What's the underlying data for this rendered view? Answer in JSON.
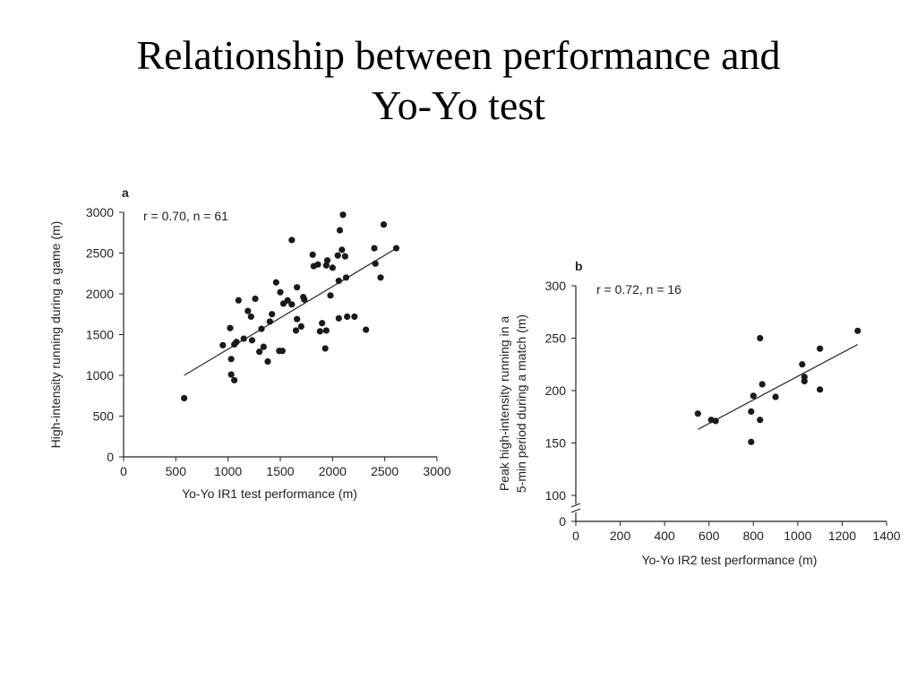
{
  "slide": {
    "title_line1": "Relationship between performance and",
    "title_line2": "Yo-Yo test"
  },
  "chart_data": [
    {
      "type": "scatter",
      "panel": "a",
      "annotation": "r = 0.70, n = 61",
      "xlabel": "Yo-Yo IR1 test performance (m)",
      "ylabel": "High-intensity running during a game (m)",
      "xlim": [
        0,
        3000
      ],
      "ylim": [
        0,
        3000
      ],
      "xticks": [
        0,
        500,
        1000,
        1500,
        2000,
        2500,
        3000
      ],
      "yticks": [
        0,
        500,
        1000,
        1500,
        2000,
        2500,
        3000
      ],
      "trendline": [
        [
          580,
          1000
        ],
        [
          2600,
          2550
        ]
      ],
      "points": [
        [
          580,
          720
        ],
        [
          950,
          1370
        ],
        [
          1020,
          1580
        ],
        [
          1030,
          1200
        ],
        [
          1030,
          1010
        ],
        [
          1060,
          940
        ],
        [
          1060,
          1380
        ],
        [
          1080,
          1410
        ],
        [
          1100,
          1920
        ],
        [
          1150,
          1450
        ],
        [
          1190,
          1790
        ],
        [
          1220,
          1720
        ],
        [
          1230,
          1430
        ],
        [
          1260,
          1940
        ],
        [
          1300,
          1290
        ],
        [
          1320,
          1570
        ],
        [
          1340,
          1350
        ],
        [
          1380,
          1170
        ],
        [
          1400,
          1660
        ],
        [
          1420,
          1750
        ],
        [
          1460,
          2140
        ],
        [
          1490,
          1300
        ],
        [
          1500,
          2020
        ],
        [
          1520,
          1300
        ],
        [
          1530,
          1880
        ],
        [
          1570,
          1920
        ],
        [
          1610,
          2660
        ],
        [
          1610,
          1870
        ],
        [
          1650,
          1550
        ],
        [
          1660,
          2080
        ],
        [
          1660,
          1690
        ],
        [
          1700,
          1600
        ],
        [
          1720,
          1960
        ],
        [
          1730,
          1930
        ],
        [
          1810,
          2480
        ],
        [
          1820,
          2340
        ],
        [
          1860,
          2360
        ],
        [
          1880,
          1540
        ],
        [
          1900,
          1640
        ],
        [
          1930,
          1330
        ],
        [
          1940,
          1550
        ],
        [
          1940,
          2350
        ],
        [
          1950,
          2410
        ],
        [
          1980,
          1980
        ],
        [
          2000,
          2320
        ],
        [
          2050,
          2470
        ],
        [
          2060,
          2160
        ],
        [
          2060,
          1700
        ],
        [
          2070,
          2780
        ],
        [
          2090,
          2540
        ],
        [
          2100,
          2970
        ],
        [
          2120,
          2460
        ],
        [
          2130,
          2200
        ],
        [
          2140,
          1720
        ],
        [
          2210,
          1720
        ],
        [
          2320,
          1560
        ],
        [
          2400,
          2560
        ],
        [
          2410,
          2370
        ],
        [
          2460,
          2200
        ],
        [
          2490,
          2850
        ],
        [
          2610,
          2560
        ]
      ]
    },
    {
      "type": "scatter",
      "panel": "b",
      "annotation": "r = 0.72, n = 16",
      "xlabel": "Yo-Yo IR2 test performance (m)",
      "ylabel_line1": "Peak high-intensity running in a",
      "ylabel_line2": "5-min period during a match (m)",
      "xlim": [
        0,
        1400
      ],
      "ylim": [
        100,
        300
      ],
      "xticks": [
        0,
        200,
        400,
        600,
        800,
        1000,
        1200,
        1400
      ],
      "yticks": [
        100,
        150,
        200,
        250,
        300
      ],
      "y_zero_label": "0",
      "y_axis_break": true,
      "trendline": [
        [
          550,
          163
        ],
        [
          1270,
          244
        ]
      ],
      "points": [
        [
          550,
          178
        ],
        [
          610,
          172
        ],
        [
          630,
          171
        ],
        [
          790,
          151
        ],
        [
          790,
          180
        ],
        [
          800,
          195
        ],
        [
          830,
          250
        ],
        [
          830,
          172
        ],
        [
          840,
          206
        ],
        [
          900,
          194
        ],
        [
          1020,
          225
        ],
        [
          1030,
          213
        ],
        [
          1030,
          209
        ],
        [
          1100,
          240
        ],
        [
          1100,
          201
        ],
        [
          1270,
          257
        ]
      ]
    }
  ]
}
